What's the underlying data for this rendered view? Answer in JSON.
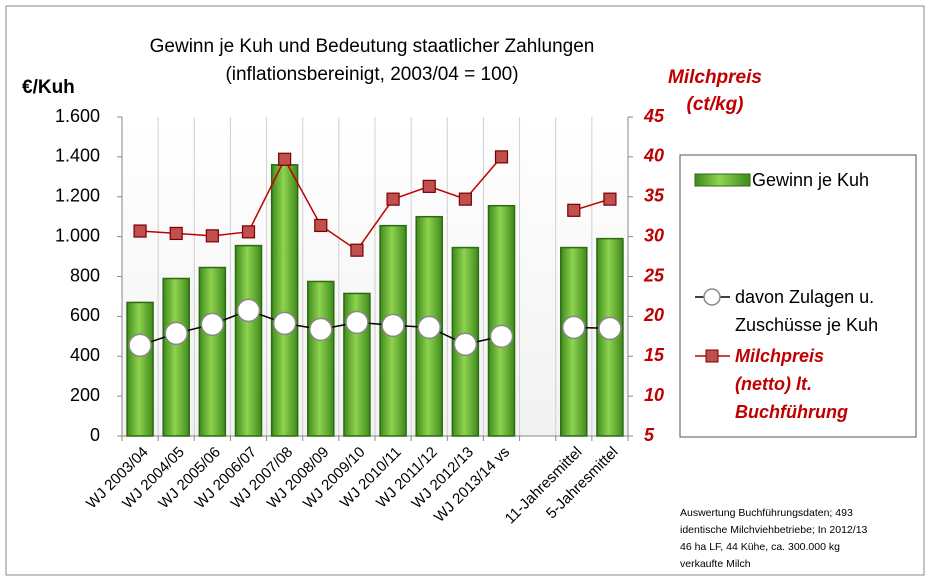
{
  "chart_data": {
    "type": "combo",
    "title": "Gewinn je Kuh und Bedeutung staatlicher Zahlungen",
    "subtitle": "(inflationsbereinigt, 2003/04 = 100)",
    "y_label": "€/Kuh",
    "y2_label": "Milchpreis (ct/kg)",
    "note": "Auswertung Buchführungsdaten; 493 identische Milchviehbetriebe; In 2012/13 46 ha LF, 44 Kühe, ca. 300.000 kg verkaufte Milch",
    "categories": [
      "WJ 2003/04",
      "WJ 2004/05",
      "WJ 2005/06",
      "WJ 2006/07",
      "WJ 2007/08",
      "WJ 2008/09",
      "WJ 2009/10",
      "WJ 2010/11",
      "WJ 2011/12",
      "WJ 2012/13",
      "WJ 2013/14 vs",
      null,
      "11-Jahresmittel",
      "5-Jahresmittel"
    ],
    "series": [
      {
        "name": "Gewinn je Kuh",
        "type": "bar",
        "color": "#5fae2e",
        "values": [
          670,
          790,
          845,
          955,
          1360,
          775,
          715,
          1055,
          1100,
          945,
          1155,
          null,
          945,
          990
        ]
      },
      {
        "name": "davon Zulagen u. Zuschüsse je Kuh",
        "type": "line",
        "color": "#000000",
        "values": [
          455,
          515,
          560,
          630,
          565,
          535,
          570,
          555,
          545,
          460,
          500,
          null,
          545,
          540
        ]
      },
      {
        "name": "Milchpreis (netto) lt. Buchführung",
        "type": "line",
        "axis": "y2",
        "color": "#c00000",
        "values": [
          30.7,
          30.4,
          30.1,
          30.6,
          39.7,
          31.4,
          28.3,
          34.7,
          36.3,
          34.7,
          40.0,
          null,
          33.3,
          34.7
        ]
      }
    ],
    "ylim": [
      0,
      1600
    ],
    "yticks": [
      0,
      200,
      400,
      600,
      800,
      {
        "value": 1000,
        "label": "1.000"
      },
      {
        "value": 1200,
        "label": "1.200"
      },
      {
        "value": 1400,
        "label": "1.400"
      },
      {
        "value": 1600,
        "label": "1.600"
      }
    ],
    "y2lim": [
      5,
      45
    ],
    "y2ticks": [
      5,
      10,
      15,
      20,
      25,
      30,
      35,
      40,
      45
    ],
    "grid": "vertical",
    "legend": "right"
  }
}
